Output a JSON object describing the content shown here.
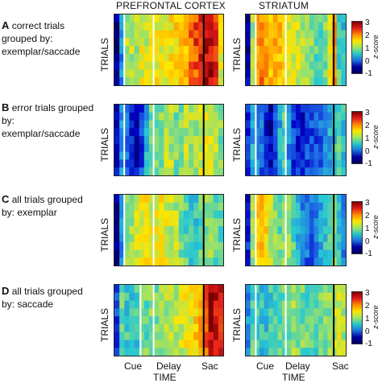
{
  "columns": [
    "PREFRONTAL CORTEX",
    "STRIATUM"
  ],
  "rows": [
    {
      "letter": "A",
      "text": "correct trials grouped by: exemplar/saccade",
      "ytitle": "TRIALS"
    },
    {
      "letter": "B",
      "text": "error trials grouped by: exemplar/saccade",
      "ytitle": "TRIALS"
    },
    {
      "letter": "C",
      "text": "all trials grouped by: exemplar",
      "ytitle": "TRIALS"
    },
    {
      "letter": "D",
      "text": "all trials grouped by: saccade",
      "ytitle": "TRIALS"
    }
  ],
  "xaxis": {
    "ticks": [
      "Cue",
      "Delay",
      "Sac"
    ],
    "label": "TIME"
  },
  "colorbar": {
    "label": "z-score",
    "ticks": [
      "3",
      "2",
      "1",
      "0",
      "-1"
    ],
    "range": [
      -1,
      3
    ]
  },
  "event_markers": [
    "cue-onset",
    "delay-onset",
    "saccade"
  ],
  "colors": {
    "high": "#7a0000",
    "mid": "#9be564",
    "low": "#000060"
  }
}
